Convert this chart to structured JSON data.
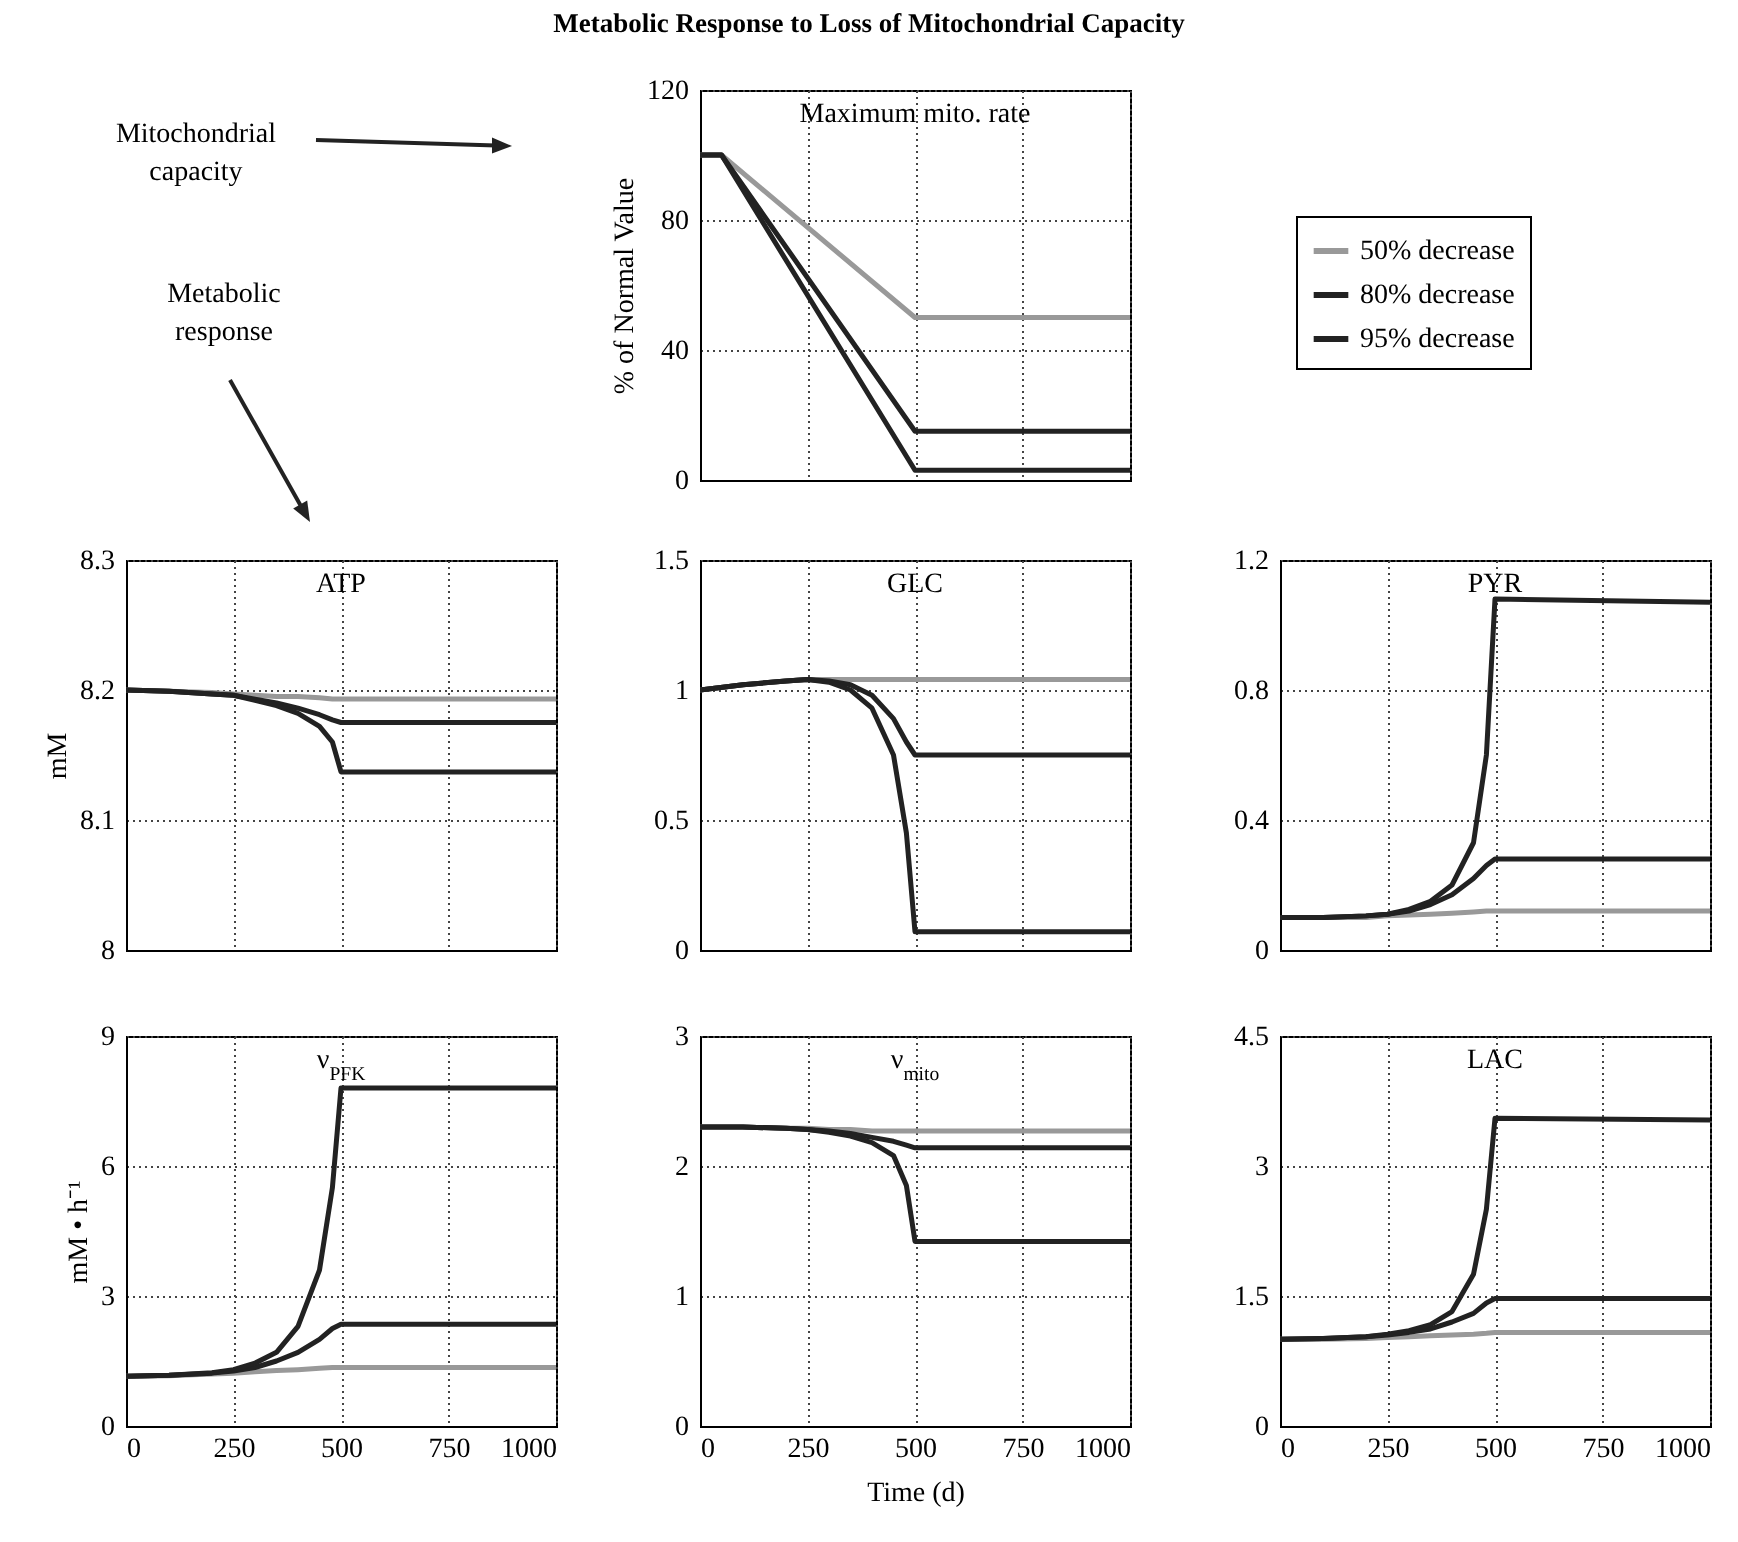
{
  "chart_data": [
    {
      "type": "other",
      "title": "Metabolic Response to Loss of Mitochondrial Capacity",
      "annotations": [
        "Mitochondrial capacity",
        "Metabolic response"
      ]
    },
    {
      "type": "line",
      "title": "Maximum mito. rate",
      "ylabel": "% of Normal Value",
      "x": [
        0,
        50,
        500,
        1000
      ],
      "xlim": [
        0,
        1000
      ],
      "xticks": [
        0,
        250,
        500,
        750,
        1000
      ],
      "ylim": [
        0,
        120
      ],
      "yticks": [
        0,
        40,
        80,
        120
      ],
      "grid": true,
      "tick_labels": "y",
      "legend": "right",
      "series": [
        {
          "name": "50% decrease",
          "color": "#999999",
          "values": [
            100,
            100,
            50,
            50
          ]
        },
        {
          "name": "80% decrease",
          "color": "#222222",
          "values": [
            100,
            100,
            15,
            15
          ]
        },
        {
          "name": "95% decrease",
          "color": "#222222",
          "values": [
            100,
            100,
            3,
            3
          ]
        }
      ]
    },
    {
      "type": "line",
      "title": "ATP",
      "ylabel": "mM",
      "x": [
        0,
        100,
        200,
        250,
        300,
        350,
        400,
        450,
        480,
        500,
        1000
      ],
      "xlim": [
        0,
        1000
      ],
      "xticks": [
        0,
        250,
        500,
        750,
        1000
      ],
      "ylim": [
        8,
        8.3
      ],
      "yticks": [
        8,
        8.1,
        8.2,
        8.3
      ],
      "grid": true,
      "tick_labels": "y",
      "series": [
        {
          "color": "#999999",
          "values": [
            8.2,
            8.199,
            8.198,
            8.197,
            8.196,
            8.195,
            8.195,
            8.194,
            8.193,
            8.193,
            8.193
          ]
        },
        {
          "color": "#222222",
          "values": [
            8.2,
            8.199,
            8.197,
            8.196,
            8.193,
            8.19,
            8.186,
            8.181,
            8.177,
            8.175,
            8.175
          ]
        },
        {
          "color": "#222222",
          "values": [
            8.2,
            8.199,
            8.197,
            8.196,
            8.192,
            8.188,
            8.182,
            8.172,
            8.16,
            8.137,
            8.137
          ]
        }
      ]
    },
    {
      "type": "line",
      "title": "GLC",
      "x": [
        0,
        100,
        200,
        250,
        300,
        350,
        400,
        450,
        480,
        500,
        1000
      ],
      "xlim": [
        0,
        1000
      ],
      "xticks": [
        0,
        250,
        500,
        750,
        1000
      ],
      "ylim": [
        0,
        1.5
      ],
      "yticks": [
        0,
        0.5,
        1,
        1.5
      ],
      "grid": true,
      "tick_labels": "y",
      "series": [
        {
          "color": "#999999",
          "values": [
            1,
            1.02,
            1.035,
            1.04,
            1.04,
            1.04,
            1.04,
            1.04,
            1.04,
            1.04,
            1.04
          ]
        },
        {
          "color": "#222222",
          "values": [
            1,
            1.02,
            1.035,
            1.04,
            1.035,
            1.02,
            0.98,
            0.89,
            0.8,
            0.75,
            0.75
          ]
        },
        {
          "color": "#222222",
          "values": [
            1,
            1.02,
            1.035,
            1.04,
            1.03,
            1,
            0.93,
            0.75,
            0.45,
            0.07,
            0.07
          ]
        }
      ]
    },
    {
      "type": "line",
      "title": "PYR",
      "x": [
        0,
        100,
        200,
        250,
        300,
        350,
        400,
        450,
        480,
        500,
        1000
      ],
      "xlim": [
        0,
        1000
      ],
      "xticks": [
        0,
        250,
        500,
        750,
        1000
      ],
      "ylim": [
        0,
        1.2
      ],
      "yticks": [
        0,
        0.4,
        0.8,
        1.2
      ],
      "grid": true,
      "tick_labels": "y",
      "series": [
        {
          "color": "#999999",
          "values": [
            0.1,
            0.1,
            0.1,
            0.105,
            0.108,
            0.11,
            0.113,
            0.117,
            0.12,
            0.12,
            0.12
          ]
        },
        {
          "color": "#222222",
          "values": [
            0.1,
            0.1,
            0.105,
            0.11,
            0.12,
            0.14,
            0.17,
            0.22,
            0.26,
            0.28,
            0.28
          ]
        },
        {
          "color": "#222222",
          "values": [
            0.1,
            0.1,
            0.105,
            0.11,
            0.125,
            0.15,
            0.2,
            0.33,
            0.6,
            1.08,
            1.07
          ]
        }
      ]
    },
    {
      "type": "line",
      "title": "ν$_{PFK}$",
      "ylabel": "mM • h⁻¹",
      "x": [
        0,
        100,
        200,
        250,
        300,
        350,
        400,
        450,
        480,
        500,
        1000
      ],
      "xlim": [
        0,
        1000
      ],
      "xticks": [
        0,
        250,
        500,
        750,
        1000
      ],
      "ylim": [
        0,
        9
      ],
      "yticks": [
        0,
        3,
        6,
        9
      ],
      "grid": true,
      "series": [
        {
          "color": "#999999",
          "values": [
            1.15,
            1.16,
            1.2,
            1.22,
            1.25,
            1.28,
            1.3,
            1.33,
            1.35,
            1.35,
            1.35
          ]
        },
        {
          "color": "#222222",
          "values": [
            1.15,
            1.17,
            1.22,
            1.27,
            1.35,
            1.5,
            1.7,
            2,
            2.25,
            2.35,
            2.35
          ]
        },
        {
          "color": "#222222",
          "values": [
            1.15,
            1.17,
            1.23,
            1.3,
            1.45,
            1.7,
            2.3,
            3.6,
            5.5,
            7.8,
            7.8
          ]
        }
      ]
    },
    {
      "type": "line",
      "title": "ν$_{mito}$",
      "xlabel": "Time (d)",
      "x": [
        0,
        100,
        200,
        250,
        300,
        350,
        400,
        450,
        480,
        500,
        1000
      ],
      "xlim": [
        0,
        1000
      ],
      "xticks": [
        0,
        250,
        500,
        750,
        1000
      ],
      "ylim": [
        0,
        3
      ],
      "yticks": [
        0,
        1,
        2,
        3
      ],
      "grid": true,
      "series": [
        {
          "color": "#999999",
          "values": [
            2.3,
            2.3,
            2.29,
            2.29,
            2.28,
            2.28,
            2.27,
            2.27,
            2.27,
            2.27,
            2.27
          ]
        },
        {
          "color": "#222222",
          "values": [
            2.3,
            2.3,
            2.29,
            2.28,
            2.27,
            2.25,
            2.22,
            2.19,
            2.16,
            2.14,
            2.14
          ]
        },
        {
          "color": "#222222",
          "values": [
            2.3,
            2.3,
            2.29,
            2.28,
            2.26,
            2.23,
            2.18,
            2.08,
            1.85,
            1.42,
            1.42
          ]
        }
      ]
    },
    {
      "type": "line",
      "title": "LAC",
      "x": [
        0,
        100,
        200,
        250,
        300,
        350,
        400,
        450,
        480,
        500,
        1000
      ],
      "xlim": [
        0,
        1000
      ],
      "xticks": [
        0,
        250,
        500,
        750,
        1000
      ],
      "ylim": [
        0,
        4.5
      ],
      "yticks": [
        0,
        1.5,
        3,
        4.5
      ],
      "grid": true,
      "series": [
        {
          "color": "#999999",
          "values": [
            1,
            1,
            1.01,
            1.02,
            1.03,
            1.04,
            1.05,
            1.06,
            1.07,
            1.08,
            1.08
          ]
        },
        {
          "color": "#222222",
          "values": [
            1,
            1.01,
            1.03,
            1.05,
            1.08,
            1.12,
            1.2,
            1.3,
            1.42,
            1.47,
            1.47
          ]
        },
        {
          "color": "#222222",
          "values": [
            1,
            1.01,
            1.03,
            1.06,
            1.1,
            1.17,
            1.32,
            1.75,
            2.5,
            3.55,
            3.53
          ]
        }
      ]
    }
  ]
}
